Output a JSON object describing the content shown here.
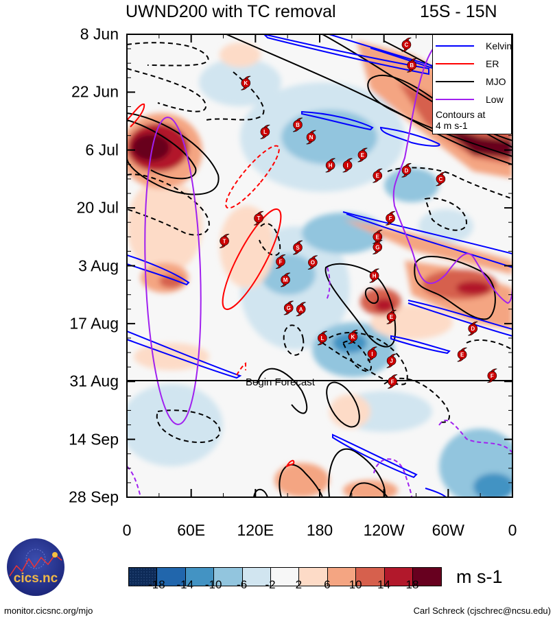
{
  "header": {
    "title": "UWND200 with TC removal",
    "region": "15S - 15N"
  },
  "chart_data": {
    "type": "heatmap",
    "title": "UWND200 with TC removal",
    "subtitle": "15S - 15N",
    "xlabel": "Longitude",
    "ylabel": "Date",
    "x_ticks": [
      {
        "lon": 0,
        "label": "0"
      },
      {
        "lon": 60,
        "label": "60E"
      },
      {
        "lon": 120,
        "label": "120E"
      },
      {
        "lon": 180,
        "label": "180"
      },
      {
        "lon": 240,
        "label": "120W"
      },
      {
        "lon": 300,
        "label": "60W"
      },
      {
        "lon": 360,
        "label": "0"
      }
    ],
    "y_ticks": [
      {
        "day": 0,
        "label": "8 Jun"
      },
      {
        "day": 14,
        "label": "22 Jun"
      },
      {
        "day": 28,
        "label": "6 Jul"
      },
      {
        "day": 42,
        "label": "20 Jul"
      },
      {
        "day": 56,
        "label": "3 Aug"
      },
      {
        "day": 70,
        "label": "17 Aug"
      },
      {
        "day": 84,
        "label": "31 Aug"
      },
      {
        "day": 98,
        "label": "14 Sep"
      },
      {
        "day": 112,
        "label": "28 Sep"
      }
    ],
    "xlim": [
      0,
      360
    ],
    "ylim_days": [
      0,
      112
    ],
    "forecast_start_day": 84,
    "forecast_label": "Begin Forecast",
    "colorbar": {
      "units": "m s-1",
      "labels": [
        "-18",
        "-14",
        "-10",
        "-6",
        "-2",
        "2",
        "6",
        "10",
        "14",
        "18"
      ],
      "colors": [
        "#0d2a57",
        "#2166ac",
        "#4393c3",
        "#92c5de",
        "#d1e5f0",
        "#f7f7f7",
        "#fddbc7",
        "#f4a582",
        "#d6604d",
        "#b2182b",
        "#67001f"
      ]
    },
    "legend": {
      "placement": "top-right",
      "entries": [
        {
          "label": "Kelvin",
          "color": "#0000ff"
        },
        {
          "label": "ER",
          "color": "#ff0000"
        },
        {
          "label": "MJO",
          "color": "#000000"
        },
        {
          "label": "Low",
          "color": "#a020f0"
        }
      ],
      "note_line1": "Contours at",
      "note_line2": "4 m s-1"
    },
    "tropical_cyclones": [
      {
        "letter": "C",
        "lon": 261,
        "day": 2.5
      },
      {
        "letter": "B",
        "lon": 266,
        "day": 7.5
      },
      {
        "letter": "K",
        "lon": 111,
        "day": 11.8
      },
      {
        "letter": "B",
        "lon": 159.5,
        "day": 21.9
      },
      {
        "letter": "L",
        "lon": 129,
        "day": 23.6
      },
      {
        "letter": "N",
        "lon": 172,
        "day": 24.9
      },
      {
        "letter": "E",
        "lon": 220,
        "day": 29.2
      },
      {
        "letter": "H",
        "lon": 190,
        "day": 31.7
      },
      {
        "letter": "I",
        "lon": 206,
        "day": 31.7
      },
      {
        "letter": "D",
        "lon": 261,
        "day": 32.9
      },
      {
        "letter": "E",
        "lon": 234,
        "day": 34.2
      },
      {
        "letter": "C",
        "lon": 293,
        "day": 35
      },
      {
        "letter": "T",
        "lon": 123,
        "day": 44.5
      },
      {
        "letter": "F",
        "lon": 246,
        "day": 44.5
      },
      {
        "letter": "E",
        "lon": 234,
        "day": 49
      },
      {
        "letter": "T",
        "lon": 91,
        "day": 50
      },
      {
        "letter": "G",
        "lon": 234,
        "day": 51.5
      },
      {
        "letter": "S",
        "lon": 159.5,
        "day": 51.6
      },
      {
        "letter": "F",
        "lon": 143.5,
        "day": 55
      },
      {
        "letter": "O",
        "lon": 173.5,
        "day": 55.2
      },
      {
        "letter": "H",
        "lon": 231,
        "day": 58.4
      },
      {
        "letter": "M",
        "lon": 148,
        "day": 59.4
      },
      {
        "letter": "G",
        "lon": 151,
        "day": 66.2
      },
      {
        "letter": "A",
        "lon": 162.5,
        "day": 66.5
      },
      {
        "letter": "E",
        "lon": 247,
        "day": 68.4
      },
      {
        "letter": "D",
        "lon": 323,
        "day": 71.2
      },
      {
        "letter": "K",
        "lon": 211,
        "day": 73.2
      },
      {
        "letter": "L",
        "lon": 182.5,
        "day": 73.5
      },
      {
        "letter": "I",
        "lon": 229,
        "day": 77.3
      },
      {
        "letter": "E",
        "lon": 313,
        "day": 77.5
      },
      {
        "letter": "J",
        "lon": 247,
        "day": 79
      },
      {
        "letter": "F",
        "lon": 341,
        "day": 82.6
      },
      {
        "letter": "F",
        "lon": 248,
        "day": 84
      }
    ]
  },
  "footer": {
    "site": "monitor.cicsnc.org/mjo",
    "credit": "Carl Schreck (cjschrec@ncsu.edu)",
    "logo_text": "cics.nc",
    "logo_ring_text": "Cooperative Institute for Climate and Satellites"
  }
}
